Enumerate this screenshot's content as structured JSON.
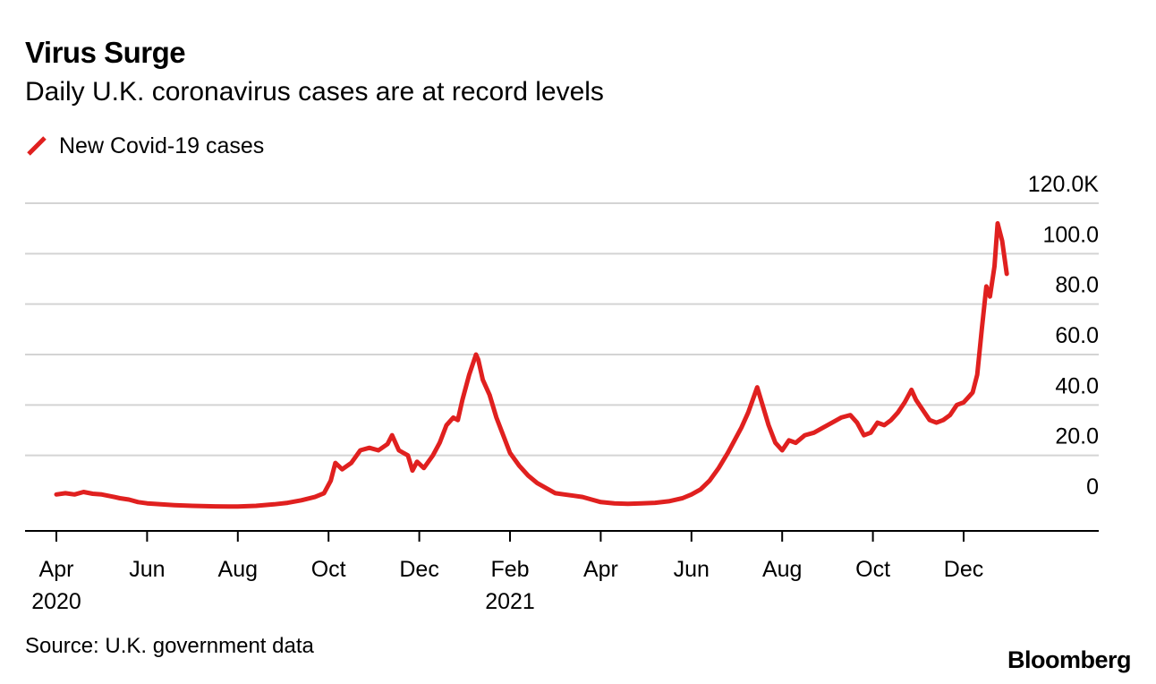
{
  "title": "Virus Surge",
  "subtitle": "Daily U.K. coronavirus cases are at record levels",
  "legend": {
    "label": "New Covid-19 cases",
    "color": "#e0201f"
  },
  "source": "Source: U.K. government data",
  "brand": "Bloomberg",
  "chart_data": {
    "type": "line",
    "title": "Virus Surge",
    "subtitle": "Daily U.K. coronavirus cases are at record levels",
    "xlabel": "",
    "ylabel": "",
    "y_unit_note": "thousands",
    "ylim": [
      -10,
      120
    ],
    "y_ticks": [
      {
        "value": 120,
        "label": "120.0K"
      },
      {
        "value": 100,
        "label": "100.0"
      },
      {
        "value": 80,
        "label": "80.0"
      },
      {
        "value": 60,
        "label": "60.0"
      },
      {
        "value": 40,
        "label": "40.0"
      },
      {
        "value": 20,
        "label": "20.0"
      },
      {
        "value": 0,
        "label": "0"
      }
    ],
    "x_ticks": [
      {
        "month": 0,
        "label": "Apr",
        "year": "2020"
      },
      {
        "month": 2,
        "label": "Jun"
      },
      {
        "month": 4,
        "label": "Aug"
      },
      {
        "month": 6,
        "label": "Oct"
      },
      {
        "month": 8,
        "label": "Dec"
      },
      {
        "month": 10,
        "label": "Feb",
        "year": "2021"
      },
      {
        "month": 12,
        "label": "Apr"
      },
      {
        "month": 14,
        "label": "Jun"
      },
      {
        "month": 16,
        "label": "Aug"
      },
      {
        "month": 18,
        "label": "Oct"
      },
      {
        "month": 20,
        "label": "Dec"
      }
    ],
    "grid": true,
    "series": [
      {
        "name": "New Covid-19 cases",
        "color": "#e0201f",
        "x_unit": "months since Apr 1 2020",
        "points": [
          [
            0.0,
            4.5
          ],
          [
            0.2,
            5.0
          ],
          [
            0.4,
            4.5
          ],
          [
            0.6,
            5.5
          ],
          [
            0.8,
            4.8
          ],
          [
            1.0,
            4.5
          ],
          [
            1.2,
            3.8
          ],
          [
            1.4,
            3.0
          ],
          [
            1.6,
            2.5
          ],
          [
            1.8,
            1.5
          ],
          [
            2.0,
            1.0
          ],
          [
            2.3,
            0.6
          ],
          [
            2.6,
            0.3
          ],
          [
            3.0,
            0.0
          ],
          [
            3.5,
            -0.2
          ],
          [
            4.0,
            -0.3
          ],
          [
            4.4,
            0.0
          ],
          [
            4.8,
            0.6
          ],
          [
            5.1,
            1.2
          ],
          [
            5.4,
            2.2
          ],
          [
            5.7,
            3.5
          ],
          [
            5.9,
            5.0
          ],
          [
            6.05,
            10.0
          ],
          [
            6.15,
            17.0
          ],
          [
            6.3,
            14.5
          ],
          [
            6.5,
            17.0
          ],
          [
            6.7,
            22.0
          ],
          [
            6.9,
            23.0
          ],
          [
            7.1,
            22.0
          ],
          [
            7.3,
            24.5
          ],
          [
            7.4,
            28.0
          ],
          [
            7.55,
            22.0
          ],
          [
            7.75,
            20.0
          ],
          [
            7.85,
            14.0
          ],
          [
            7.95,
            17.5
          ],
          [
            8.1,
            15.0
          ],
          [
            8.3,
            20.0
          ],
          [
            8.45,
            25.0
          ],
          [
            8.6,
            32.0
          ],
          [
            8.75,
            35.0
          ],
          [
            8.85,
            34.0
          ],
          [
            8.95,
            42.0
          ],
          [
            9.1,
            52.0
          ],
          [
            9.25,
            60.0
          ],
          [
            9.3,
            58.0
          ],
          [
            9.4,
            50.0
          ],
          [
            9.55,
            44.0
          ],
          [
            9.7,
            35.0
          ],
          [
            9.85,
            28.0
          ],
          [
            10.0,
            21.0
          ],
          [
            10.2,
            16.0
          ],
          [
            10.4,
            12.0
          ],
          [
            10.6,
            9.0
          ],
          [
            10.8,
            7.0
          ],
          [
            11.0,
            5.0
          ],
          [
            11.2,
            4.5
          ],
          [
            11.4,
            4.0
          ],
          [
            11.6,
            3.5
          ],
          [
            11.8,
            2.5
          ],
          [
            12.0,
            1.5
          ],
          [
            12.3,
            1.0
          ],
          [
            12.6,
            0.8
          ],
          [
            12.9,
            1.0
          ],
          [
            13.2,
            1.2
          ],
          [
            13.5,
            1.8
          ],
          [
            13.8,
            3.0
          ],
          [
            14.0,
            4.5
          ],
          [
            14.2,
            6.5
          ],
          [
            14.4,
            10.0
          ],
          [
            14.6,
            15.0
          ],
          [
            14.8,
            21.0
          ],
          [
            14.95,
            26.0
          ],
          [
            15.1,
            31.0
          ],
          [
            15.25,
            37.0
          ],
          [
            15.45,
            47.0
          ],
          [
            15.55,
            41.0
          ],
          [
            15.7,
            32.0
          ],
          [
            15.85,
            25.0
          ],
          [
            16.0,
            22.0
          ],
          [
            16.15,
            26.0
          ],
          [
            16.3,
            25.0
          ],
          [
            16.5,
            28.0
          ],
          [
            16.7,
            29.0
          ],
          [
            16.9,
            31.0
          ],
          [
            17.1,
            33.0
          ],
          [
            17.3,
            35.0
          ],
          [
            17.5,
            36.0
          ],
          [
            17.65,
            33.0
          ],
          [
            17.8,
            28.0
          ],
          [
            17.95,
            29.0
          ],
          [
            18.1,
            33.0
          ],
          [
            18.25,
            32.0
          ],
          [
            18.4,
            34.0
          ],
          [
            18.55,
            37.0
          ],
          [
            18.7,
            41.0
          ],
          [
            18.85,
            46.0
          ],
          [
            18.95,
            42.0
          ],
          [
            19.1,
            38.0
          ],
          [
            19.25,
            34.0
          ],
          [
            19.4,
            33.0
          ],
          [
            19.55,
            34.0
          ],
          [
            19.7,
            36.0
          ],
          [
            19.85,
            40.0
          ],
          [
            20.0,
            41.0
          ],
          [
            20.1,
            43.0
          ],
          [
            20.2,
            45.0
          ],
          [
            20.3,
            52.0
          ],
          [
            20.4,
            70.0
          ],
          [
            20.5,
            87.0
          ],
          [
            20.58,
            83.0
          ],
          [
            20.68,
            95.0
          ],
          [
            20.75,
            112.0
          ],
          [
            20.85,
            105.0
          ],
          [
            20.95,
            92.0
          ]
        ]
      }
    ]
  }
}
